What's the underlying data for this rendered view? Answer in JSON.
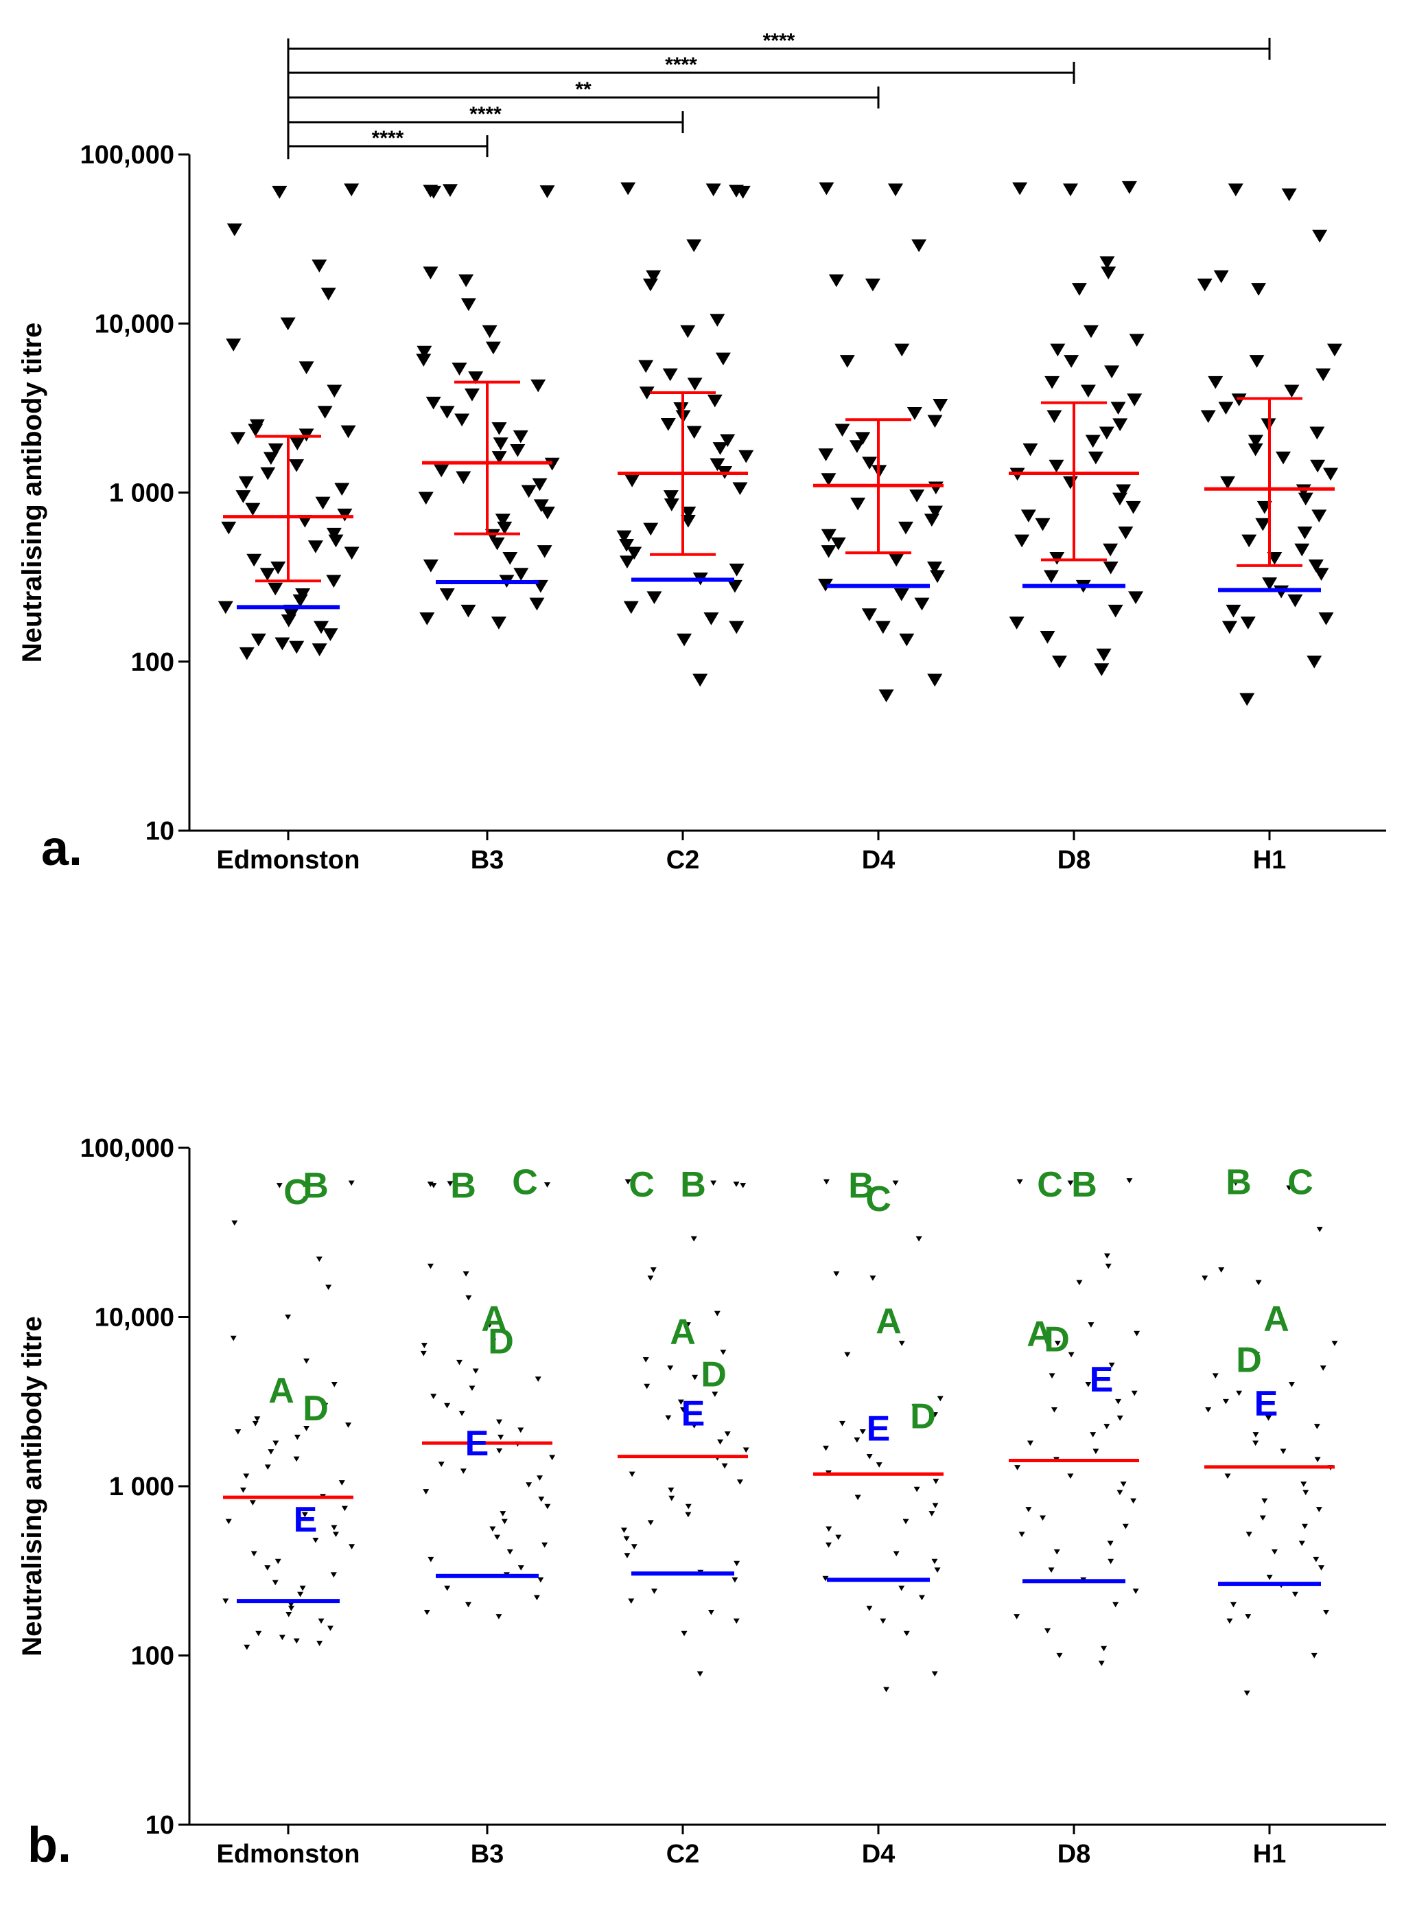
{
  "colors": {
    "mean": "#ff0000",
    "median_line": "#0000ff",
    "errorbar": "#ff0000",
    "points": "#000000",
    "letter_green": "#228b22",
    "letter_blue": "#0000ff"
  },
  "chart_data": [
    {
      "panel_label": "a.",
      "type": "scatter",
      "ylabel": "Neutralising antibody titre",
      "yscale": "log",
      "ylim": [
        10,
        100000
      ],
      "yticks": [
        10,
        100,
        1000,
        10000,
        100000
      ],
      "ytick_labels": [
        "10",
        "100",
        "1 000",
        "10,000",
        "100,000"
      ],
      "categories": [
        "Edmonston",
        "B3",
        "C2",
        "D4",
        "D8",
        "H1"
      ],
      "groups": [
        {
          "name": "Edmonston",
          "mean": 720,
          "sd_low": 300,
          "sd_high": 2150,
          "low_line": 210,
          "points": [
            112,
            118,
            122,
            128,
            135,
            145,
            160,
            175,
            190,
            200,
            210,
            230,
            250,
            270,
            300,
            330,
            360,
            400,
            440,
            480,
            520,
            570,
            620,
            680,
            740,
            800,
            870,
            950,
            1050,
            1150,
            1300,
            1450,
            1600,
            1800,
            1950,
            2100,
            2200,
            2300,
            2350,
            2500,
            3000,
            4000,
            5500,
            7500,
            10000,
            15000,
            22000,
            36000,
            60000,
            62000
          ]
        },
        {
          "name": "B3",
          "mean": 1500,
          "sd_low": 570,
          "sd_high": 4500,
          "low_line": 295,
          "points": [
            170,
            180,
            200,
            220,
            250,
            280,
            300,
            330,
            370,
            410,
            450,
            500,
            560,
            620,
            690,
            760,
            840,
            930,
            1020,
            1120,
            1230,
            1350,
            1480,
            1620,
            1780,
            1950,
            2150,
            2400,
            2700,
            3000,
            3400,
            3800,
            4300,
            4800,
            5400,
            6100,
            6800,
            7200,
            9000,
            13000,
            18000,
            20000,
            60000,
            60500,
            61000,
            61500
          ]
        },
        {
          "name": "C2",
          "mean": 1300,
          "sd_low": 430,
          "sd_high": 3900,
          "low_line": 305,
          "points": [
            78,
            135,
            160,
            180,
            210,
            240,
            280,
            310,
            350,
            390,
            440,
            490,
            550,
            610,
            680,
            760,
            850,
            950,
            1060,
            1180,
            1320,
            1470,
            1640,
            1830,
            2040,
            2280,
            2540,
            2830,
            3150,
            3500,
            3900,
            4400,
            5000,
            5600,
            6200,
            9000,
            10500,
            17000,
            19000,
            29000,
            60000,
            61000,
            62000,
            63000
          ]
        },
        {
          "name": "D4",
          "mean": 1100,
          "sd_low": 440,
          "sd_high": 2700,
          "low_line": 280,
          "points": [
            63,
            78,
            135,
            160,
            190,
            220,
            250,
            285,
            320,
            360,
            400,
            450,
            500,
            560,
            620,
            690,
            770,
            860,
            960,
            1070,
            1200,
            1340,
            1500,
            1680,
            1880,
            2100,
            2350,
            2650,
            2950,
            3300,
            6000,
            7000,
            17000,
            18000,
            29000,
            62000,
            63000
          ]
        },
        {
          "name": "D8",
          "mean": 1300,
          "sd_low": 400,
          "sd_high": 3400,
          "low_line": 280,
          "points": [
            90,
            100,
            110,
            140,
            170,
            200,
            240,
            280,
            320,
            360,
            410,
            460,
            520,
            580,
            650,
            730,
            820,
            920,
            1030,
            1150,
            1290,
            1440,
            1610,
            1800,
            2020,
            2260,
            2530,
            2830,
            3170,
            3550,
            4000,
            4500,
            5200,
            6000,
            7000,
            8000,
            9000,
            16000,
            20000,
            23000,
            62000,
            63000,
            64000
          ]
        },
        {
          "name": "H1",
          "mean": 1050,
          "sd_low": 370,
          "sd_high": 3600,
          "low_line": 265,
          "points": [
            60,
            100,
            160,
            170,
            180,
            200,
            230,
            260,
            290,
            330,
            370,
            410,
            460,
            520,
            580,
            650,
            730,
            820,
            920,
            1030,
            1150,
            1290,
            1440,
            1610,
            1800,
            2020,
            2260,
            2530,
            2830,
            3170,
            3550,
            4000,
            4500,
            5000,
            6000,
            7000,
            16000,
            17000,
            19000,
            33000,
            58000,
            62000
          ]
        }
      ],
      "significance": [
        {
          "from": "Edmonston",
          "to": "B3",
          "label": "****"
        },
        {
          "from": "Edmonston",
          "to": "C2",
          "label": "****"
        },
        {
          "from": "Edmonston",
          "to": "D4",
          "label": "**"
        },
        {
          "from": "Edmonston",
          "to": "D8",
          "label": "****"
        },
        {
          "from": "Edmonston",
          "to": "H1",
          "label": "****"
        }
      ]
    },
    {
      "panel_label": "b.",
      "type": "scatter",
      "ylabel": "Neutralising antibody titre",
      "yscale": "log",
      "ylim": [
        10,
        100000
      ],
      "yticks": [
        10,
        100,
        1000,
        10000,
        100000
      ],
      "ytick_labels": [
        "10",
        "100",
        "1 000",
        "10,000",
        "100,000"
      ],
      "categories": [
        "Edmonston",
        "B3",
        "C2",
        "D4",
        "D8",
        "H1"
      ],
      "groups": [
        {
          "name": "Edmonston",
          "mean": 860,
          "low_line": 210,
          "letters": [
            {
              "t": "C",
              "v": 55000,
              "c": "green",
              "dx": 12
            },
            {
              "t": "B",
              "v": 60000,
              "c": "green",
              "dx": 40
            },
            {
              "t": "A",
              "v": 3700,
              "c": "green",
              "dx": -10
            },
            {
              "t": "D",
              "v": 2900,
              "c": "green",
              "dx": 40
            },
            {
              "t": "E",
              "v": 640,
              "c": "blue",
              "dx": 25
            }
          ]
        },
        {
          "name": "B3",
          "mean": 1800,
          "low_line": 295,
          "letters": [
            {
              "t": "B",
              "v": 60000,
              "c": "green",
              "dx": -35
            },
            {
              "t": "C",
              "v": 63000,
              "c": "green",
              "dx": 55
            },
            {
              "t": "A",
              "v": 9800,
              "c": "green",
              "dx": 10
            },
            {
              "t": "D",
              "v": 7200,
              "c": "green",
              "dx": 20
            },
            {
              "t": "E",
              "v": 1800,
              "c": "blue",
              "dx": -15
            }
          ]
        },
        {
          "name": "C2",
          "mean": 1500,
          "low_line": 305,
          "letters": [
            {
              "t": "C",
              "v": 61000,
              "c": "green",
              "dx": -60
            },
            {
              "t": "B",
              "v": 61000,
              "c": "green",
              "dx": 15
            },
            {
              "t": "A",
              "v": 8200,
              "c": "green",
              "dx": 0
            },
            {
              "t": "D",
              "v": 4600,
              "c": "green",
              "dx": 45
            },
            {
              "t": "E",
              "v": 2700,
              "c": "blue",
              "dx": 15
            }
          ]
        },
        {
          "name": "D4",
          "mean": 1180,
          "low_line": 280,
          "letters": [
            {
              "t": "B",
              "v": 60000,
              "c": "green",
              "dx": -25
            },
            {
              "t": "C",
              "v": 50000,
              "c": "green",
              "dx": 0
            },
            {
              "t": "A",
              "v": 9500,
              "c": "green",
              "dx": 15
            },
            {
              "t": "E",
              "v": 2200,
              "c": "blue",
              "dx": 0
            },
            {
              "t": "D",
              "v": 2600,
              "c": "green",
              "dx": 65
            }
          ]
        },
        {
          "name": "D8",
          "mean": 1420,
          "low_line": 275,
          "letters": [
            {
              "t": "C",
              "v": 61000,
              "c": "green",
              "dx": -35
            },
            {
              "t": "B",
              "v": 61000,
              "c": "green",
              "dx": 15
            },
            {
              "t": "A",
              "v": 8000,
              "c": "green",
              "dx": -50
            },
            {
              "t": "D",
              "v": 7400,
              "c": "green",
              "dx": -25
            },
            {
              "t": "E",
              "v": 4300,
              "c": "blue",
              "dx": 40
            }
          ]
        },
        {
          "name": "H1",
          "mean": 1300,
          "low_line": 265,
          "letters": [
            {
              "t": "B",
              "v": 63000,
              "c": "green",
              "dx": -45
            },
            {
              "t": "C",
              "v": 63000,
              "c": "green",
              "dx": 45
            },
            {
              "t": "A",
              "v": 9800,
              "c": "green",
              "dx": 10
            },
            {
              "t": "D",
              "v": 5600,
              "c": "green",
              "dx": -30
            },
            {
              "t": "E",
              "v": 3100,
              "c": "blue",
              "dx": -5
            }
          ]
        }
      ]
    }
  ]
}
